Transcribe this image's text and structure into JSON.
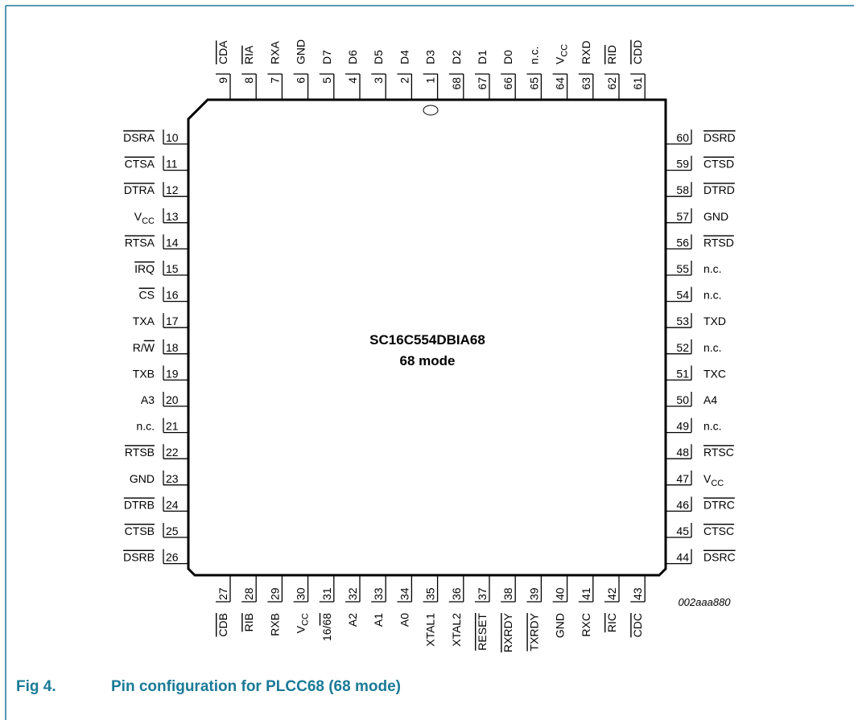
{
  "figure": {
    "number": "Fig 4.",
    "title": "Pin configuration for PLCC68 (68 mode)",
    "device": "SC16C554DBIA68",
    "mode": "68 mode",
    "code": "002aaa880"
  },
  "pins": {
    "top": [
      {
        "n": "9",
        "label": "CDA",
        "bar": true
      },
      {
        "n": "8",
        "label": "RIA",
        "bar": true
      },
      {
        "n": "7",
        "label": "RXA",
        "bar": false
      },
      {
        "n": "6",
        "label": "GND",
        "bar": false
      },
      {
        "n": "5",
        "label": "D7",
        "bar": false
      },
      {
        "n": "4",
        "label": "D6",
        "bar": false
      },
      {
        "n": "3",
        "label": "D5",
        "bar": false
      },
      {
        "n": "2",
        "label": "D4",
        "bar": false
      },
      {
        "n": "1",
        "label": "D3",
        "bar": false
      },
      {
        "n": "68",
        "label": "D2",
        "bar": false
      },
      {
        "n": "67",
        "label": "D1",
        "bar": false
      },
      {
        "n": "66",
        "label": "D0",
        "bar": false
      },
      {
        "n": "65",
        "label": "n.c.",
        "bar": false
      },
      {
        "n": "64",
        "label": "V",
        "sub": "CC",
        "bar": false
      },
      {
        "n": "63",
        "label": "RXD",
        "bar": false
      },
      {
        "n": "62",
        "label": "RID",
        "bar": true
      },
      {
        "n": "61",
        "label": "CDD",
        "bar": true
      }
    ],
    "left": [
      {
        "n": "10",
        "label": "DSRA",
        "bar": true
      },
      {
        "n": "11",
        "label": "CTSA",
        "bar": true
      },
      {
        "n": "12",
        "label": "DTRA",
        "bar": true
      },
      {
        "n": "13",
        "label": "V",
        "sub": "CC",
        "bar": false
      },
      {
        "n": "14",
        "label": "RTSA",
        "bar": true
      },
      {
        "n": "15",
        "label": "IRQ",
        "bar": true
      },
      {
        "n": "16",
        "label": "CS",
        "bar": true
      },
      {
        "n": "17",
        "label": "TXA",
        "bar": false
      },
      {
        "n": "18",
        "label": "R/",
        "label2": "W",
        "bar": false
      },
      {
        "n": "19",
        "label": "TXB",
        "bar": false
      },
      {
        "n": "20",
        "label": "A3",
        "bar": false
      },
      {
        "n": "21",
        "label": "n.c.",
        "bar": false
      },
      {
        "n": "22",
        "label": "RTSB",
        "bar": true
      },
      {
        "n": "23",
        "label": "GND",
        "bar": false
      },
      {
        "n": "24",
        "label": "DTRB",
        "bar": true
      },
      {
        "n": "25",
        "label": "CTSB",
        "bar": true
      },
      {
        "n": "26",
        "label": "DSRB",
        "bar": true
      }
    ],
    "right": [
      {
        "n": "60",
        "label": "DSRD",
        "bar": true
      },
      {
        "n": "59",
        "label": "CTSD",
        "bar": true
      },
      {
        "n": "58",
        "label": "DTRD",
        "bar": true
      },
      {
        "n": "57",
        "label": "GND",
        "bar": false
      },
      {
        "n": "56",
        "label": "RTSD",
        "bar": true
      },
      {
        "n": "55",
        "label": "n.c.",
        "bar": false
      },
      {
        "n": "54",
        "label": "n.c.",
        "bar": false
      },
      {
        "n": "53",
        "label": "TXD",
        "bar": false
      },
      {
        "n": "52",
        "label": "n.c.",
        "bar": false
      },
      {
        "n": "51",
        "label": "TXC",
        "bar": false
      },
      {
        "n": "50",
        "label": "A4",
        "bar": false
      },
      {
        "n": "49",
        "label": "n.c.",
        "bar": false
      },
      {
        "n": "48",
        "label": "RTSC",
        "bar": true
      },
      {
        "n": "47",
        "label": "V",
        "sub": "CC",
        "bar": false
      },
      {
        "n": "46",
        "label": "DTRC",
        "bar": true
      },
      {
        "n": "45",
        "label": "CTSC",
        "bar": true
      },
      {
        "n": "44",
        "label": "DSRC",
        "bar": true
      }
    ],
    "bottom": [
      {
        "n": "27",
        "label": "CDB",
        "bar": true
      },
      {
        "n": "28",
        "label": "RIB",
        "bar": true
      },
      {
        "n": "29",
        "label": "RXB",
        "bar": false
      },
      {
        "n": "30",
        "label": "V",
        "sub": "CC",
        "bar": false
      },
      {
        "n": "31",
        "label": "16/",
        "label2": "68",
        "bar": false
      },
      {
        "n": "32",
        "label": "A2",
        "bar": false
      },
      {
        "n": "33",
        "label": "A1",
        "bar": false
      },
      {
        "n": "34",
        "label": "A0",
        "bar": false
      },
      {
        "n": "35",
        "label": "XTAL1",
        "bar": false
      },
      {
        "n": "36",
        "label": "XTAL2",
        "bar": false
      },
      {
        "n": "37",
        "label": "RESET",
        "bar": true
      },
      {
        "n": "38",
        "label": "RXRDY",
        "bar": true
      },
      {
        "n": "39",
        "label": "TXRDY",
        "bar": true
      },
      {
        "n": "40",
        "label": "GND",
        "bar": false
      },
      {
        "n": "41",
        "label": "RXC",
        "bar": false
      },
      {
        "n": "42",
        "label": "RIC",
        "bar": true
      },
      {
        "n": "43",
        "label": "CDC",
        "bar": true
      }
    ]
  },
  "colors": {
    "caption": "#1a7a96",
    "frame": "#1a7a96",
    "outline": "#000000"
  }
}
